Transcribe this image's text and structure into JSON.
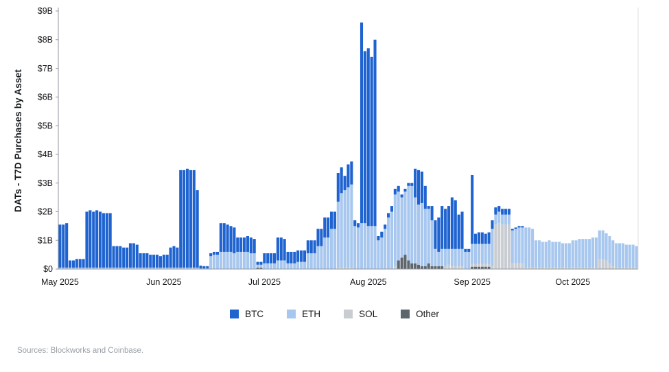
{
  "footer": {
    "sources": "Sources: Blockworks and Coinbase."
  },
  "chart_data": {
    "type": "bar",
    "stacked": true,
    "title": "",
    "xlabel": "",
    "ylabel": "DATs - T7D Purchases by Asset",
    "unit": "USD billions",
    "grid": false,
    "legend_position": "bottom",
    "ylim": [
      0,
      9
    ],
    "ytick_labels": [
      "$0",
      "$1B",
      "$2B",
      "$3B",
      "$4B",
      "$5B",
      "$6B",
      "$7B",
      "$8B",
      "$9B"
    ],
    "x_axis": {
      "start": "2025-05-01",
      "interval": "daily"
    },
    "xticks": [
      {
        "label": "May 2025",
        "index": 0
      },
      {
        "label": "Jun 2025",
        "index": 31
      },
      {
        "label": "Jul 2025",
        "index": 61
      },
      {
        "label": "Aug 2025",
        "index": 92
      },
      {
        "label": "Sep 2025",
        "index": 123
      },
      {
        "label": "Oct 2025",
        "index": 153
      }
    ],
    "legend": [
      {
        "name": "BTC",
        "color": "#1e63d0"
      },
      {
        "name": "ETH",
        "color": "#a7c7ef"
      },
      {
        "name": "SOL",
        "color": "#c9cdd1"
      },
      {
        "name": "Other",
        "color": "#5d656d"
      }
    ],
    "stack_order": [
      "Other",
      "SOL",
      "ETH",
      "BTC"
    ],
    "series": [
      {
        "name": "BTC",
        "values": [
          1.5,
          1.5,
          1.55,
          0.25,
          0.25,
          0.3,
          0.3,
          0.3,
          1.95,
          2,
          1.95,
          2,
          1.95,
          1.9,
          1.9,
          1.9,
          0.75,
          0.75,
          0.75,
          0.7,
          0.7,
          0.85,
          0.85,
          0.8,
          0.5,
          0.5,
          0.5,
          0.45,
          0.45,
          0.45,
          0.4,
          0.45,
          0.45,
          0.7,
          0.75,
          0.7,
          3.4,
          3.4,
          3.45,
          3.4,
          3.4,
          2.7,
          0.1,
          0.08,
          0.08,
          0.1,
          0.1,
          0.1,
          1,
          1,
          0.95,
          0.9,
          0.9,
          0.5,
          0.5,
          0.5,
          0.55,
          0.55,
          0.5,
          0.1,
          0.1,
          0.35,
          0.35,
          0.35,
          0.35,
          0.8,
          0.8,
          0.75,
          0.4,
          0.4,
          0.4,
          0.4,
          0.4,
          0.4,
          0.45,
          0.45,
          0.45,
          0.6,
          0.6,
          0.7,
          0.7,
          0.6,
          0.6,
          1,
          0.9,
          0.5,
          0.8,
          0.8,
          0.2,
          0.15,
          7,
          6,
          6.2,
          5.9,
          6.5,
          0.15,
          0.2,
          0.15,
          0.15,
          0.2,
          0.2,
          0.2,
          0.1,
          0.1,
          0.1,
          0.1,
          1,
          1.2,
          1.1,
          0.8,
          0.1,
          0.5,
          1,
          1.2,
          1.5,
          1.4,
          1.5,
          1.8,
          1.7,
          1.2,
          1.3,
          0.1,
          0.1,
          2.4,
          0.35,
          0.4,
          0.4,
          0.35,
          0.4,
          0.3,
          0.25,
          0.2,
          0.2,
          0.2,
          0.2,
          0.05,
          0.05,
          0.05,
          0.05,
          0,
          0,
          0,
          0,
          0,
          0,
          0,
          0,
          0,
          0,
          0,
          0,
          0,
          0,
          0,
          0,
          0,
          0,
          0,
          0,
          0,
          0,
          0,
          0,
          0,
          0,
          0,
          0,
          0,
          0,
          0,
          0,
          0,
          0
        ]
      },
      {
        "name": "ETH",
        "values": [
          0.05,
          0.05,
          0.05,
          0.05,
          0.05,
          0.05,
          0.05,
          0.05,
          0.05,
          0.05,
          0.05,
          0.05,
          0.05,
          0.05,
          0.05,
          0.05,
          0.05,
          0.05,
          0.05,
          0.05,
          0.05,
          0.05,
          0.05,
          0.05,
          0.05,
          0.05,
          0.05,
          0.05,
          0.05,
          0.05,
          0.05,
          0.05,
          0.05,
          0.05,
          0.05,
          0.05,
          0.05,
          0.05,
          0.05,
          0.05,
          0.05,
          0.05,
          0.02,
          0.02,
          0.02,
          0.45,
          0.5,
          0.5,
          0.6,
          0.6,
          0.6,
          0.6,
          0.55,
          0.6,
          0.6,
          0.6,
          0.6,
          0.55,
          0.55,
          0.1,
          0.1,
          0.2,
          0.2,
          0.2,
          0.2,
          0.3,
          0.3,
          0.3,
          0.2,
          0.2,
          0.2,
          0.25,
          0.25,
          0.25,
          0.55,
          0.55,
          0.55,
          0.8,
          0.8,
          1.1,
          1.1,
          1.4,
          1.4,
          2.3,
          2.6,
          2.7,
          2.8,
          2.9,
          1.5,
          1.45,
          1.6,
          1.6,
          1.5,
          1.5,
          1.5,
          1,
          1.1,
          1.4,
          1.8,
          2,
          2.5,
          2.4,
          2.1,
          2.2,
          2.6,
          2.7,
          2.3,
          2.1,
          2.2,
          2,
          1.9,
          1.6,
          0.6,
          0.5,
          0.6,
          0.6,
          0.55,
          0.6,
          0.6,
          0.6,
          0.6,
          0.6,
          0.6,
          0.7,
          0.7,
          0.7,
          0.7,
          0.7,
          0.7,
          1.3,
          0.35,
          0.4,
          0.35,
          0.35,
          0.35,
          1.15,
          1.2,
          1.25,
          1.25,
          1.4,
          1.4,
          1.35,
          0.95,
          0.95,
          0.9,
          0.9,
          0.95,
          0.9,
          0.9,
          0.9,
          0.85,
          0.85,
          0.85,
          0.95,
          0.95,
          1,
          1,
          1,
          1,
          1.05,
          1.05,
          1,
          1,
          0.95,
          0.95,
          0.9,
          0.85,
          0.85,
          0.85,
          0.8,
          0.8,
          0.8,
          0.75
        ]
      },
      {
        "name": "SOL",
        "values": [
          0,
          0,
          0,
          0,
          0,
          0,
          0,
          0,
          0,
          0,
          0,
          0,
          0,
          0,
          0,
          0,
          0,
          0,
          0,
          0,
          0,
          0,
          0,
          0,
          0,
          0,
          0,
          0,
          0,
          0,
          0,
          0,
          0,
          0,
          0,
          0,
          0,
          0,
          0,
          0,
          0,
          0,
          0,
          0,
          0,
          0,
          0,
          0,
          0,
          0,
          0,
          0,
          0,
          0,
          0,
          0,
          0,
          0,
          0,
          0,
          0,
          0,
          0,
          0,
          0,
          0,
          0,
          0,
          0,
          0,
          0,
          0,
          0,
          0,
          0,
          0,
          0,
          0,
          0,
          0,
          0,
          0,
          0,
          0.05,
          0.05,
          0.05,
          0.05,
          0.05,
          0,
          0,
          0,
          0,
          0,
          0,
          0,
          0,
          0,
          0,
          0,
          0,
          0.1,
          0,
          0,
          0,
          0,
          0,
          0,
          0,
          0,
          0,
          0,
          0,
          0,
          0,
          0,
          0.1,
          0.15,
          0.1,
          0.1,
          0.1,
          0.1,
          0,
          0,
          0.1,
          0.1,
          0.1,
          0.1,
          0.1,
          0.1,
          0.1,
          1.55,
          1.6,
          1.55,
          1.55,
          1.55,
          0.2,
          0.2,
          0.2,
          0.2,
          0.05,
          0.05,
          0.05,
          0.05,
          0.05,
          0.05,
          0.05,
          0.05,
          0.05,
          0.05,
          0.05,
          0.05,
          0.05,
          0.05,
          0.05,
          0.05,
          0.05,
          0.05,
          0.05,
          0.05,
          0.05,
          0.05,
          0.35,
          0.35,
          0.3,
          0.2,
          0.1,
          0.05,
          0.05,
          0.05,
          0.05,
          0.05,
          0.05,
          0.05
        ]
      },
      {
        "name": "Other",
        "values": [
          0,
          0,
          0,
          0,
          0,
          0,
          0,
          0,
          0,
          0,
          0,
          0,
          0,
          0,
          0,
          0,
          0,
          0,
          0,
          0,
          0,
          0,
          0,
          0,
          0,
          0,
          0,
          0,
          0,
          0,
          0,
          0,
          0,
          0,
          0,
          0,
          0,
          0,
          0,
          0,
          0,
          0,
          0,
          0,
          0,
          0,
          0,
          0,
          0,
          0,
          0,
          0,
          0,
          0,
          0,
          0,
          0,
          0,
          0,
          0.05,
          0.05,
          0,
          0,
          0,
          0,
          0,
          0,
          0,
          0,
          0,
          0,
          0,
          0,
          0,
          0,
          0,
          0,
          0,
          0,
          0,
          0,
          0,
          0,
          0,
          0,
          0,
          0,
          0,
          0,
          0,
          0,
          0,
          0,
          0,
          0,
          0,
          0,
          0,
          0,
          0,
          0,
          0.3,
          0.4,
          0.5,
          0.3,
          0.2,
          0.2,
          0.15,
          0.1,
          0.1,
          0.2,
          0.1,
          0.1,
          0.1,
          0.1,
          0,
          0,
          0,
          0,
          0,
          0,
          0,
          0,
          0.08,
          0.08,
          0.08,
          0.08,
          0.08,
          0.08,
          0,
          0,
          0,
          0,
          0,
          0,
          0,
          0,
          0,
          0,
          0,
          0,
          0,
          0,
          0,
          0,
          0,
          0,
          0,
          0,
          0,
          0,
          0,
          0,
          0,
          0,
          0,
          0,
          0,
          0,
          0,
          0,
          0,
          0,
          0,
          0,
          0,
          0,
          0,
          0,
          0,
          0,
          0,
          0
        ]
      }
    ]
  }
}
